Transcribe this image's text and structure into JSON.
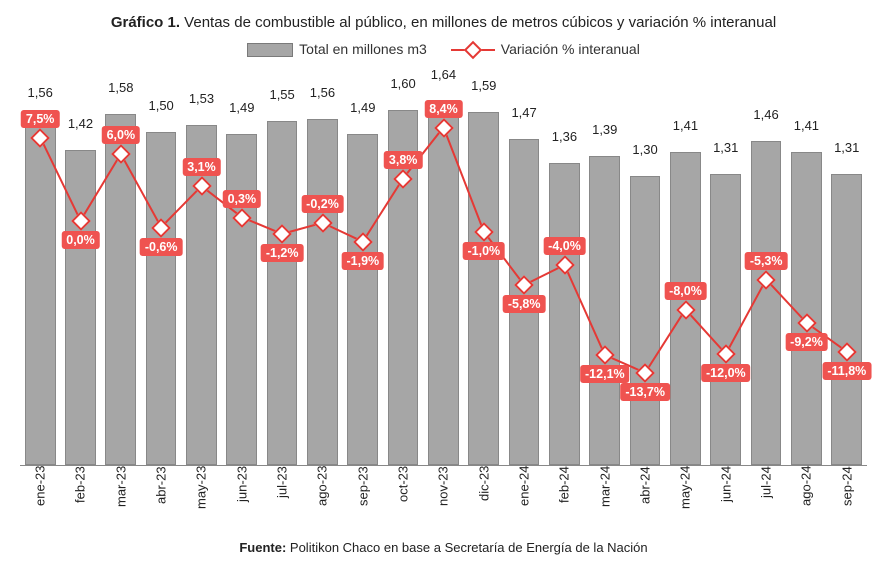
{
  "title_prefix": "Gráfico 1.",
  "title_rest": " Ventas de combustible al público, en millones de metros cúbicos y variación % interanual",
  "legend": {
    "series1": "Total en millones m3",
    "series2": "Variación % interanual"
  },
  "source_prefix": "Fuente:",
  "source_rest": " Politikon Chaco en base a Secretaría de Energía de la Nación",
  "chart": {
    "type": "bar+line",
    "background_color": "#ffffff",
    "bar_color": "#a6a6a6",
    "bar_border_color": "#888888",
    "line_color": "#e53935",
    "marker_fill": "#ffffff",
    "marker_border": "#e53935",
    "label_bg": "#ef5350",
    "label_textcolor": "#ffffff",
    "bar_label_fontsize": 13,
    "axis_label_fontsize": 13,
    "pct_label_fontsize": 12.5,
    "title_fontsize": 15,
    "bar_ylim": [
      0,
      1.8
    ],
    "bar_width": 0.76,
    "line_ylim": [
      -22,
      14
    ],
    "line_width": 2,
    "marker_size": 10,
    "categories": [
      "ene-23",
      "feb-23",
      "mar-23",
      "abr-23",
      "may-23",
      "jun-23",
      "jul-23",
      "ago-23",
      "sep-23",
      "oct-23",
      "nov-23",
      "dic-23",
      "ene-24",
      "feb-24",
      "mar-24",
      "abr-24",
      "may-24",
      "jun-24",
      "jul-24",
      "ago-24",
      "sep-24"
    ],
    "bar_values": [
      1.56,
      1.42,
      1.58,
      1.5,
      1.53,
      1.49,
      1.55,
      1.56,
      1.49,
      1.6,
      1.64,
      1.59,
      1.47,
      1.36,
      1.39,
      1.3,
      1.41,
      1.31,
      1.46,
      1.41,
      1.31
    ],
    "bar_value_labels": [
      "1,56",
      "1,42",
      "1,58",
      "1,50",
      "1,53",
      "1,49",
      "1,55",
      "1,56",
      "1,49",
      "1,60",
      "1,64",
      "1,59",
      "1,47",
      "1,36",
      "1,39",
      "1,30",
      "1,41",
      "1,31",
      "1,46",
      "1,41",
      "1,31"
    ],
    "line_values": [
      7.5,
      0.0,
      6.0,
      -0.6,
      3.1,
      0.3,
      -1.2,
      -0.2,
      -1.9,
      3.8,
      8.4,
      -1.0,
      -5.8,
      -4.0,
      -12.1,
      -13.7,
      -8.0,
      -12.0,
      -5.3,
      -9.2,
      -11.8
    ],
    "line_value_labels": [
      "7,5%",
      "0,0%",
      "6,0%",
      "-0,6%",
      "3,1%",
      "0,3%",
      "-1,2%",
      "-0,2%",
      "-1,9%",
      "3,8%",
      "8,4%",
      "-1,0%",
      "-5,8%",
      "-4,0%",
      "-12,1%",
      "-13,7%",
      "-8,0%",
      "-12,0%",
      "-5,3%",
      "-9,2%",
      "-11,8%"
    ],
    "pct_label_position": [
      "above",
      "below",
      "above",
      "below",
      "above",
      "above",
      "below",
      "above",
      "below",
      "above",
      "above",
      "below",
      "below",
      "above",
      "below",
      "below",
      "above",
      "below",
      "above",
      "below",
      "below"
    ]
  }
}
